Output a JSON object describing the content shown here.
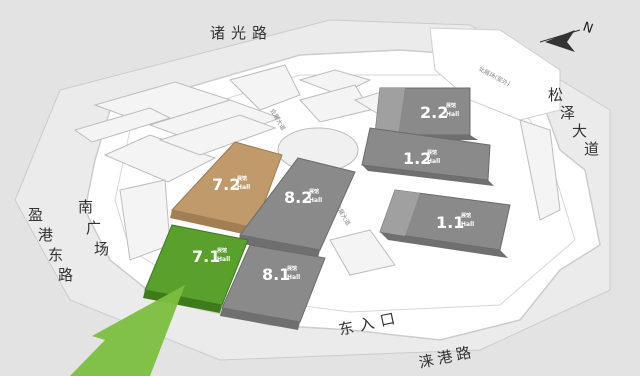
{
  "roads": {
    "top": "诸光路",
    "right": [
      "松",
      "泽",
      "大",
      "道"
    ],
    "bottom": "涞港路",
    "left": [
      "盈",
      "港",
      "东",
      "路"
    ],
    "inner_left": "会展大道",
    "inner_right": "会展大道",
    "lake": "北展场(室外)"
  },
  "plazas": {
    "south": [
      "南",
      "广",
      "场"
    ]
  },
  "gates": {
    "east": "东入口"
  },
  "halls": [
    {
      "id": "2.2",
      "cn": "展馆",
      "en": "Hall",
      "color": "#8a8a8a"
    },
    {
      "id": "1.2",
      "cn": "展馆",
      "en": "Hall",
      "color": "#8a8a8a"
    },
    {
      "id": "1.1",
      "cn": "展馆",
      "en": "Hall",
      "color": "#8a8a8a"
    },
    {
      "id": "7.2",
      "cn": "展馆",
      "en": "Hall",
      "color": "#c19a6b"
    },
    {
      "id": "8.2",
      "cn": "展馆",
      "en": "Hall",
      "color": "#8a8a8a"
    },
    {
      "id": "7.1",
      "cn": "展馆",
      "en": "Hall",
      "color": "#5aa02c"
    },
    {
      "id": "8.1",
      "cn": "展馆",
      "en": "Hall",
      "color": "#8a8a8a"
    }
  ],
  "compass": {
    "label": "N"
  },
  "colors": {
    "background": "#ffffff",
    "ground": "#dcdcdc",
    "building": "#f2f2f2",
    "highlight": "#5aa02c",
    "arrow": "#7cbf3f"
  }
}
